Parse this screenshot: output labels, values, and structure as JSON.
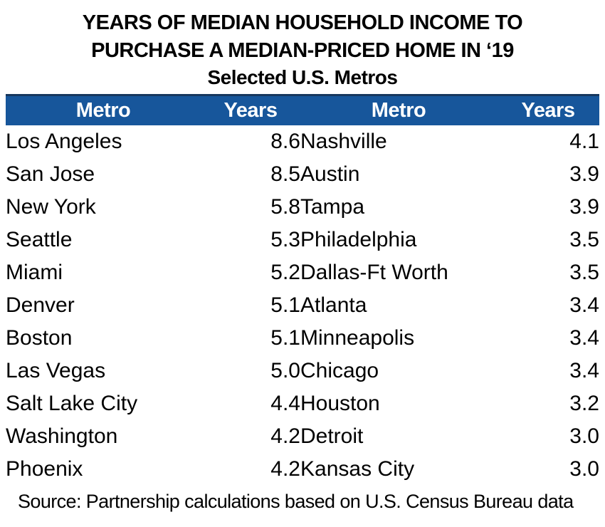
{
  "title": {
    "line1": "YEARS OF MEDIAN HOUSEHOLD INCOME TO",
    "line2": "PURCHASE A MEDIAN-PRICED HOME IN ‘19",
    "line3": "Selected U.S. Metros"
  },
  "table": {
    "headers": [
      "Metro",
      "Years",
      "Metro",
      "Years"
    ],
    "rows": [
      [
        "Los Angeles",
        "8.6",
        "Nashville",
        "4.1"
      ],
      [
        "San Jose",
        "8.5",
        "Austin",
        "3.9"
      ],
      [
        "New York",
        "5.8",
        "Tampa",
        "3.9"
      ],
      [
        "Seattle",
        "5.3",
        "Philadelphia",
        "3.5"
      ],
      [
        "Miami",
        "5.2",
        "Dallas-Ft Worth",
        "3.5"
      ],
      [
        "Denver",
        "5.1",
        "Atlanta",
        "3.4"
      ],
      [
        "Boston",
        "5.1",
        "Minneapolis",
        "3.4"
      ],
      [
        "Las Vegas",
        "5.0",
        "Chicago",
        "3.4"
      ],
      [
        "Salt Lake City",
        "4.4",
        "Houston",
        "3.2"
      ],
      [
        "Washington",
        "4.2",
        "Detroit",
        "3.0"
      ],
      [
        "Phoenix",
        "4.2",
        "Kansas City",
        "3.0"
      ]
    ]
  },
  "source": "Source: Partnership calculations based on U.S. Census Bureau data",
  "colors": {
    "header_bg": "#17569B",
    "header_top_border": "#17375E",
    "header_text": "#FFFFFF",
    "body_text": "#000000",
    "background": "#FFFFFF"
  },
  "chart_data": {
    "type": "table",
    "title": "YEARS OF MEDIAN HOUSEHOLD INCOME TO PURCHASE A MEDIAN-PRICED HOME IN ‘19",
    "subtitle": "Selected U.S. Metros",
    "columns": [
      "Metro",
      "Years",
      "Metro",
      "Years"
    ],
    "rows": [
      [
        "Los Angeles",
        8.6,
        "Nashville",
        4.1
      ],
      [
        "San Jose",
        8.5,
        "Austin",
        3.9
      ],
      [
        "New York",
        5.8,
        "Tampa",
        3.9
      ],
      [
        "Seattle",
        5.3,
        "Philadelphia",
        3.5
      ],
      [
        "Miami",
        5.2,
        "Dallas-Ft Worth",
        3.5
      ],
      [
        "Denver",
        5.1,
        "Atlanta",
        3.4
      ],
      [
        "Boston",
        5.1,
        "Minneapolis",
        3.4
      ],
      [
        "Las Vegas",
        5.0,
        "Chicago",
        3.4
      ],
      [
        "Salt Lake City",
        4.4,
        "Houston",
        3.2
      ],
      [
        "Washington",
        4.2,
        "Detroit",
        3.0
      ],
      [
        "Phoenix",
        4.2,
        "Kansas City",
        3.0
      ]
    ],
    "source": "Source: Partnership calculations based on U.S. Census Bureau data"
  }
}
